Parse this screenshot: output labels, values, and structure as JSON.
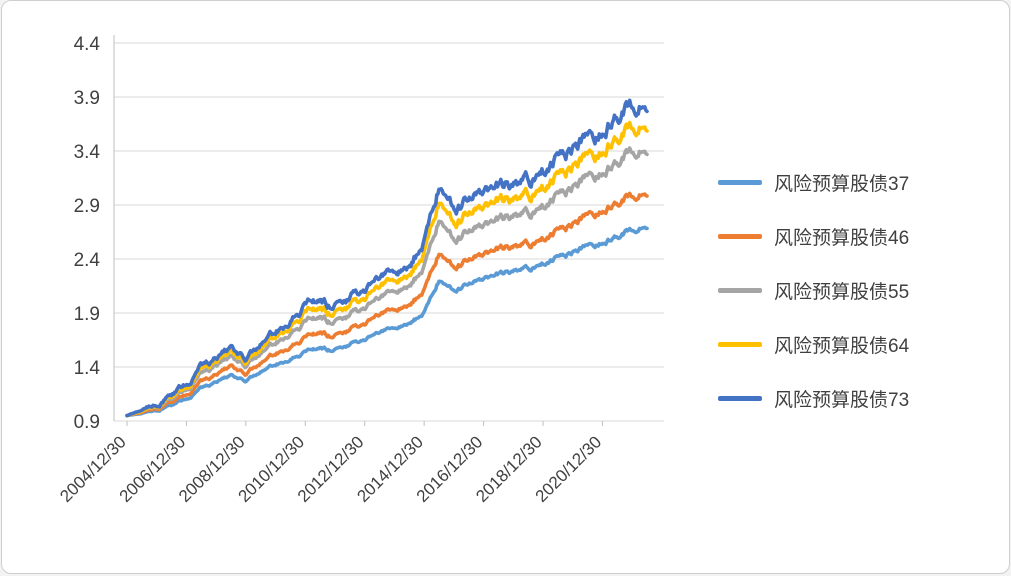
{
  "chart_data": {
    "type": "line",
    "title": "",
    "xlabel": "",
    "ylabel": "",
    "grid": "horizontal",
    "legend_position": "right",
    "ylim": [
      0.9,
      4.4
    ],
    "y_ticks": [
      0.9,
      1.4,
      1.9,
      2.4,
      2.9,
      3.4,
      3.9,
      4.4
    ],
    "x_tick_labels": [
      "2004/12/30",
      "2006/12/30",
      "2008/12/30",
      "2010/12/30",
      "2012/12/30",
      "2014/12/30",
      "2016/12/30",
      "2018/12/30",
      "2020/12/30"
    ],
    "anchor_dates": [
      "2004/12/30",
      "2005/06/30",
      "2005/12/30",
      "2006/06/30",
      "2006/12/30",
      "2007/06/30",
      "2007/12/30",
      "2008/06/30",
      "2008/12/30",
      "2009/06/30",
      "2009/12/30",
      "2010/06/30",
      "2010/12/30",
      "2011/06/30",
      "2011/12/30",
      "2012/06/30",
      "2012/12/30",
      "2013/06/30",
      "2013/12/30",
      "2014/06/30",
      "2014/12/30",
      "2015/06/30",
      "2015/12/30",
      "2016/06/30",
      "2016/12/30",
      "2017/06/30",
      "2017/12/30",
      "2018/06/30",
      "2018/12/30",
      "2019/06/30",
      "2019/12/30",
      "2020/06/30",
      "2020/12/30",
      "2021/06/30",
      "2021/12/30",
      "2022/06/30"
    ],
    "series": [
      {
        "name": "风险预算股债37",
        "color": "#5B9BD5",
        "values": [
          0.95,
          0.97,
          1.01,
          1.05,
          1.11,
          1.2,
          1.27,
          1.33,
          1.26,
          1.35,
          1.42,
          1.48,
          1.53,
          1.57,
          1.56,
          1.61,
          1.66,
          1.71,
          1.76,
          1.83,
          1.91,
          2.22,
          2.12,
          2.16,
          2.2,
          2.25,
          2.3,
          2.3,
          2.35,
          2.42,
          2.46,
          2.51,
          2.56,
          2.61,
          2.68,
          2.73
        ]
      },
      {
        "name": "风险预算股债46",
        "color": "#ED7D31",
        "values": [
          0.95,
          0.98,
          1.03,
          1.08,
          1.15,
          1.26,
          1.34,
          1.42,
          1.32,
          1.43,
          1.52,
          1.6,
          1.66,
          1.71,
          1.69,
          1.75,
          1.81,
          1.87,
          1.93,
          2.01,
          2.12,
          2.48,
          2.34,
          2.38,
          2.42,
          2.48,
          2.53,
          2.52,
          2.58,
          2.67,
          2.72,
          2.79,
          2.86,
          2.92,
          3.0,
          3.05
        ]
      },
      {
        "name": "风险预算股债55",
        "color": "#A5A5A5",
        "values": [
          0.95,
          0.99,
          1.05,
          1.11,
          1.2,
          1.33,
          1.43,
          1.51,
          1.39,
          1.52,
          1.62,
          1.73,
          1.8,
          1.85,
          1.82,
          1.89,
          1.96,
          2.02,
          2.1,
          2.2,
          2.34,
          2.8,
          2.6,
          2.64,
          2.68,
          2.75,
          2.82,
          2.8,
          2.88,
          3.0,
          3.06,
          3.14,
          3.22,
          3.3,
          3.42,
          3.46
        ]
      },
      {
        "name": "风险预算股债64",
        "color": "#FFC000",
        "values": [
          0.95,
          0.99,
          1.06,
          1.13,
          1.22,
          1.37,
          1.47,
          1.56,
          1.42,
          1.56,
          1.68,
          1.8,
          1.88,
          1.93,
          1.9,
          1.98,
          2.05,
          2.12,
          2.2,
          2.31,
          2.47,
          2.98,
          2.76,
          2.8,
          2.84,
          2.92,
          2.98,
          2.96,
          3.05,
          3.18,
          3.25,
          3.33,
          3.42,
          3.52,
          3.65,
          3.7
        ]
      },
      {
        "name": "风险预算股债73",
        "color": "#4472C4",
        "values": [
          0.95,
          1.0,
          1.07,
          1.15,
          1.25,
          1.4,
          1.5,
          1.6,
          1.45,
          1.6,
          1.72,
          1.85,
          1.95,
          2.0,
          1.97,
          2.05,
          2.13,
          2.2,
          2.28,
          2.4,
          2.58,
          3.12,
          2.9,
          2.93,
          2.98,
          3.05,
          3.12,
          3.1,
          3.2,
          3.35,
          3.42,
          3.5,
          3.6,
          3.72,
          3.85,
          3.9
        ]
      }
    ],
    "colors": {
      "gridline": "#D9D9D9",
      "axis_line": "#BFBFBF",
      "tick_text": "#404040"
    }
  }
}
